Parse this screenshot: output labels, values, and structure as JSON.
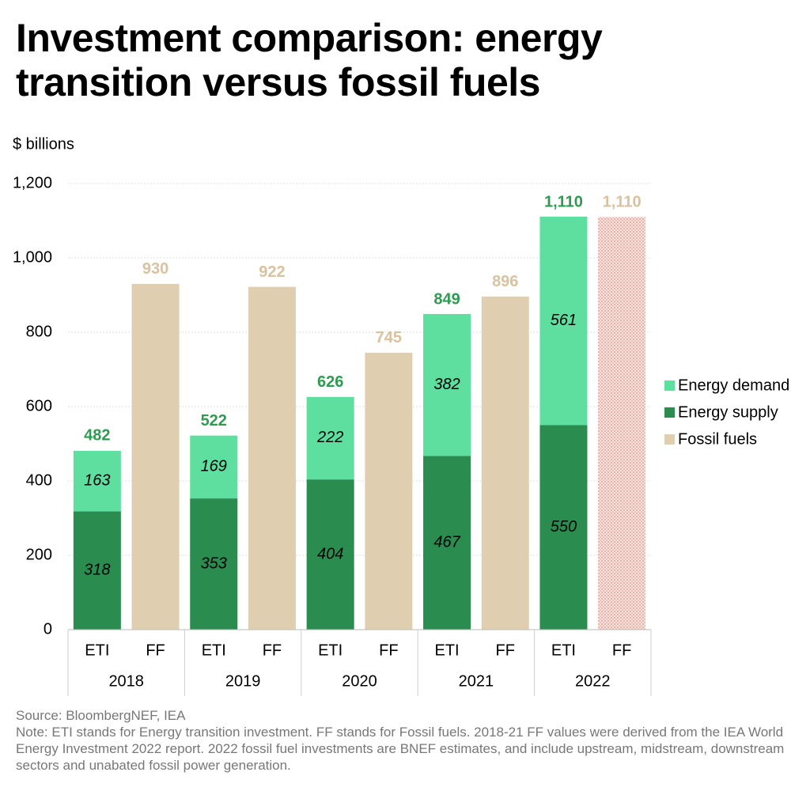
{
  "chart_data": {
    "type": "stacked_bar",
    "title": "Investment comparison: energy transition versus fossil fuels",
    "y_label": "$ billions",
    "categories": [
      "ETI",
      "FF",
      "ETI",
      "FF",
      "ETI",
      "FF",
      "ETI",
      "FF",
      "ETI",
      "FF"
    ],
    "groups": [
      "2018",
      "2019",
      "2020",
      "2021",
      "2022"
    ],
    "series": [
      {
        "name": "Energy demand",
        "color": "#5fdf9f",
        "values": [
          163,
          null,
          169,
          null,
          222,
          null,
          382,
          null,
          561,
          null
        ]
      },
      {
        "name": "Energy supply",
        "color": "#2a8c4f",
        "values": [
          318,
          null,
          353,
          null,
          404,
          null,
          467,
          null,
          550,
          null
        ]
      },
      {
        "name": "Fossil fuels",
        "color": "#dfcfb0",
        "label_color": "#d8c29f",
        "values": [
          null,
          930,
          null,
          922,
          null,
          745,
          null,
          896,
          null,
          1110
        ],
        "value_labels": [
          null,
          null,
          null,
          null,
          null,
          null,
          null,
          null,
          null,
          "1,110"
        ],
        "hatched": [
          false,
          false,
          false,
          false,
          false,
          false,
          false,
          false,
          false,
          true
        ]
      }
    ],
    "totals": {
      "color": "#2e9a52",
      "values": [
        482,
        null,
        522,
        null,
        626,
        null,
        849,
        null,
        1110,
        null
      ],
      "value_labels": [
        null,
        null,
        null,
        null,
        null,
        null,
        null,
        null,
        "1,110",
        null
      ]
    },
    "ylim": [
      0,
      1200
    ],
    "yticks": [
      0,
      200,
      400,
      600,
      800,
      {
        "value": 1000,
        "label": "1,000"
      },
      {
        "value": 1200,
        "label": "1,200"
      }
    ],
    "grid": true,
    "legend": "right",
    "source": "Source: BloombergNEF, IEA",
    "note": "Note: ETI stands for Energy transition investment. FF stands for Fossil fuels. 2018-21 FF values were derived from the IEA World Energy Investment 2022 report. 2022 fossil fuel investments are BNEF estimates, and include upstream, midstream, downstream sectors and unabated fossil power generation."
  }
}
